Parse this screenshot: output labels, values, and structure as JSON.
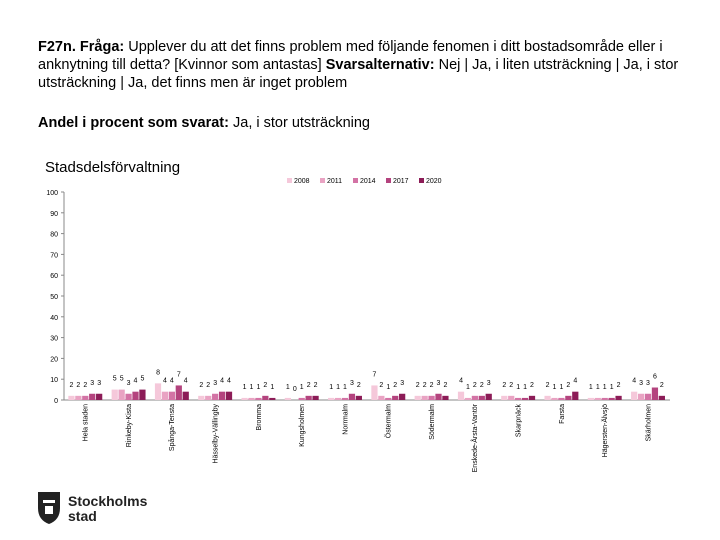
{
  "header": {
    "question_label": "F27n. Fråga:",
    "question": "Upplever du att det finns problem med följande fenomen i ditt bostadsområde eller i anknytning till detta? [Kvinnor som antastas]",
    "options_label": "Svarsalternativ:",
    "options": "Nej | Ja, i liten utsträckning | Ja, i stor utsträckning | Ja, det finns men är inget problem",
    "subtitle_label": "Andel i procent som svarat:",
    "subtitle": "Ja, i stor utsträckning"
  },
  "logo": [
    "Stockholms",
    "stad"
  ],
  "chart_data": {
    "type": "bar",
    "title": "Stadsdelsförvaltning",
    "categories": [
      "Hela staden",
      "Rinkeby-Kista",
      "Spånga-Tensta",
      "Hässelby-Vällingby",
      "Bromma",
      "Kungsholmen",
      "Norrmalm",
      "Östermalm",
      "Södermalm",
      "Enskede-Årsta-Vantör",
      "Skarpnäck",
      "Farsta",
      "Hägersten-Älvsjö",
      "Skärholmen"
    ],
    "series": [
      {
        "name": "2008",
        "color": "#f5c8da",
        "values": [
          2,
          5,
          8,
          2,
          1,
          1,
          1,
          7,
          2,
          4,
          2,
          2,
          1,
          4
        ]
      },
      {
        "name": "2011",
        "color": "#e9a3c3",
        "values": [
          2,
          5,
          4,
          2,
          1,
          0,
          1,
          2,
          2,
          1,
          2,
          1,
          1,
          3
        ]
      },
      {
        "name": "2014",
        "color": "#d373a5",
        "values": [
          2,
          3,
          4,
          3,
          1,
          1,
          1,
          1,
          2,
          2,
          1,
          1,
          1,
          3
        ]
      },
      {
        "name": "2017",
        "color": "#b4437e",
        "values": [
          3,
          4,
          7,
          4,
          2,
          2,
          3,
          2,
          3,
          2,
          1,
          2,
          1,
          6
        ]
      },
      {
        "name": "2020",
        "color": "#8c1c57",
        "values": [
          3,
          5,
          4,
          4,
          1,
          2,
          2,
          3,
          2,
          3,
          2,
          4,
          2,
          2
        ]
      }
    ],
    "ylim": [
      0,
      100
    ],
    "yticks": [
      0,
      10,
      20,
      30,
      40,
      50,
      60,
      70,
      80,
      90,
      100
    ],
    "grid": false,
    "legend": "top"
  }
}
